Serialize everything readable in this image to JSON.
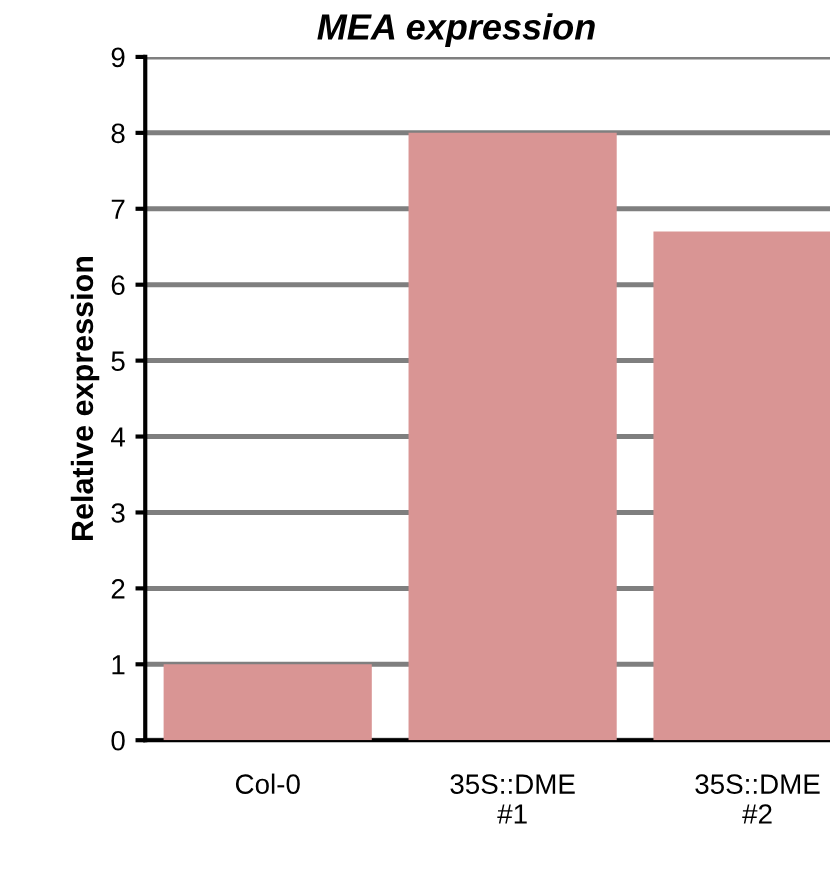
{
  "chart_data": {
    "type": "bar",
    "title": "MEA expression",
    "ylabel": "Relative expression",
    "categories": [
      "Col-0",
      "35S::DME\n#1",
      "35S::DME\n#2"
    ],
    "values": [
      1.0,
      8.0,
      6.7
    ],
    "color": "#d99594",
    "ylim": [
      0,
      9
    ],
    "yticks": [
      0,
      1,
      2,
      3,
      4,
      5,
      6,
      7,
      8,
      9
    ],
    "grid": "y"
  }
}
